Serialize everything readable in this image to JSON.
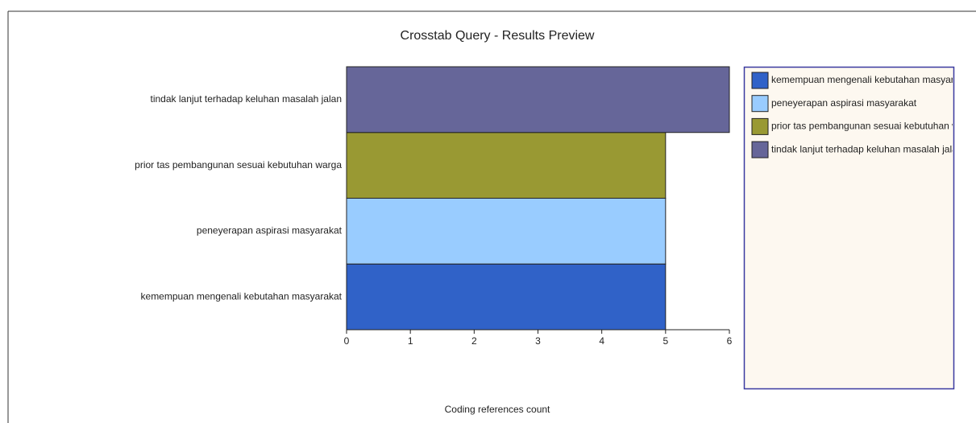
{
  "chart_data": {
    "type": "hbar",
    "title": "Crosstab Query - Results Preview",
    "x_label": "Coding references count",
    "categories": [
      "kemempuan mengenali kebutahan masyarakat",
      "peneyerapan aspirasi masyarakat",
      "prior tas pembangunan sesuai kebutuhan warga",
      "tindak lanjut terhadap keluhan masalah jalan"
    ],
    "values": [
      5,
      5,
      5,
      6
    ],
    "colors": [
      "#3062c8",
      "#99ccff",
      "#999933",
      "#666699"
    ],
    "xlim": [
      0,
      6
    ],
    "xticks": [
      0,
      1,
      2,
      3,
      4,
      5,
      6
    ],
    "legend": "right"
  }
}
